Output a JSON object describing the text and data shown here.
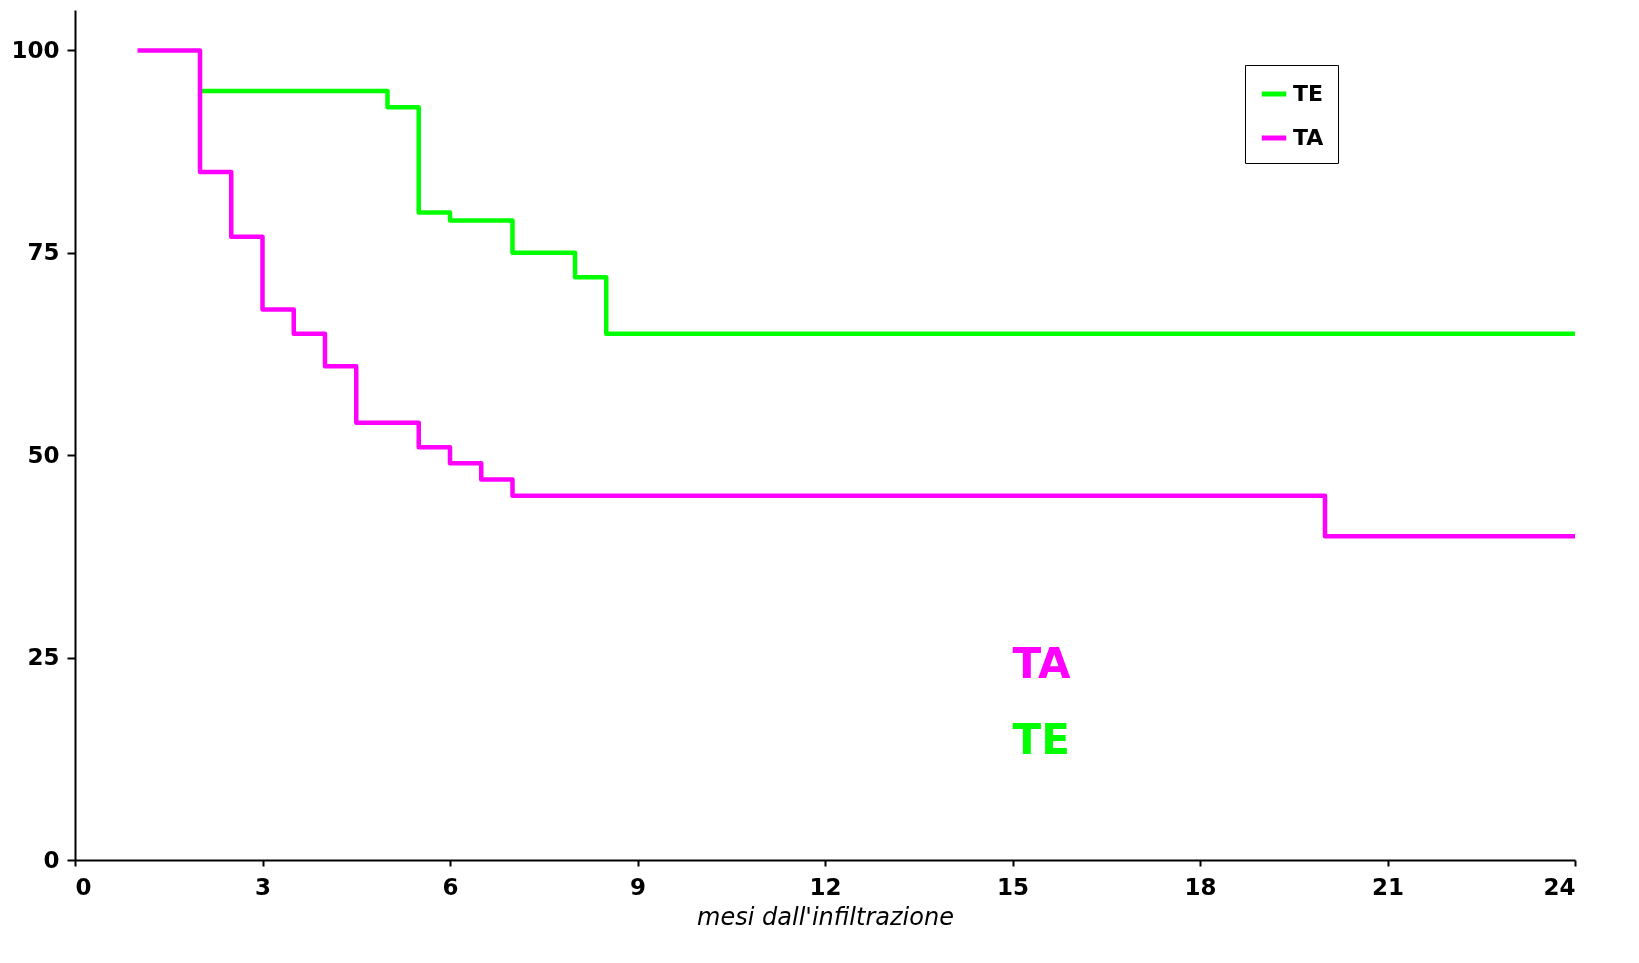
{
  "chart_data": {
    "type": "step",
    "xlabel": "mesi dall'infiltrazione",
    "xlim": [
      0,
      24
    ],
    "xticks": [
      0,
      3,
      6,
      9,
      12,
      15,
      18,
      21,
      24
    ],
    "ylim": [
      0,
      105
    ],
    "yticks": [
      0,
      25,
      50,
      75,
      100
    ],
    "grid": false,
    "legend": "top right",
    "series": [
      {
        "name": "TE",
        "color": "#00ff00",
        "x": [
          2,
          5,
          5.5,
          6,
          7,
          8,
          8.5,
          24
        ],
        "values": [
          95,
          93,
          80,
          79,
          75,
          72,
          65,
          65
        ]
      },
      {
        "name": "TA",
        "color": "#ff00ff",
        "x": [
          1,
          2,
          2.5,
          3,
          3.5,
          4,
          4.5,
          5.5,
          6,
          6.5,
          7,
          20,
          24
        ],
        "values": [
          100,
          85,
          77,
          68,
          65,
          61,
          54,
          51,
          49,
          47,
          45,
          40,
          40
        ]
      }
    ],
    "annotations": [
      "TA",
      "TE"
    ]
  }
}
